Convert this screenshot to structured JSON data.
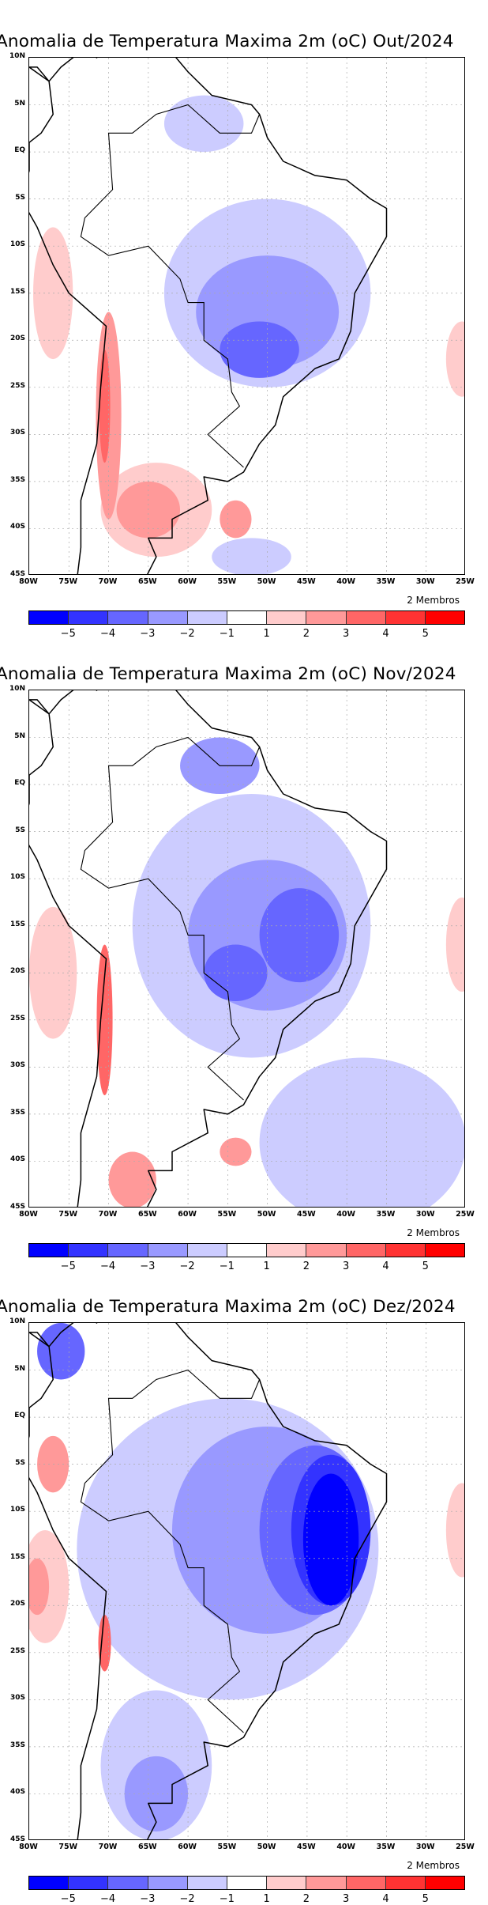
{
  "members_label": "2 Membros",
  "chart_data": {
    "type": "heatmap",
    "lon_ticks": [
      "80W",
      "75W",
      "70W",
      "65W",
      "60W",
      "55W",
      "50W",
      "45W",
      "40W",
      "35W",
      "30W",
      "25W"
    ],
    "lat_ticks": [
      "10N",
      "5N",
      "EQ",
      "5S",
      "10S",
      "15S",
      "20S",
      "25S",
      "30S",
      "35S",
      "40S",
      "45S"
    ],
    "lon_range": [
      -80,
      -25
    ],
    "lat_range": [
      -45,
      10
    ],
    "colorbar": {
      "labels": [
        "-5",
        "-4",
        "-3",
        "-2",
        "-1",
        "1",
        "2",
        "3",
        "4",
        "5"
      ],
      "levels": [
        -5,
        -4,
        -3,
        -2,
        -1,
        0,
        1,
        2,
        3,
        4,
        5
      ],
      "colors": [
        "#0000ff",
        "#3333ff",
        "#6666ff",
        "#9999ff",
        "#ccccff",
        "#ffffff",
        "#ffcccc",
        "#ff9999",
        "#ff6666",
        "#ff3333",
        "#ff0000"
      ]
    },
    "panels": [
      {
        "title": "Anomalia de Temperatura Maxima 2m (oC) Out/2024",
        "anomaly_regions": [
          {
            "lon": -50,
            "lat": -15,
            "rlon": 13,
            "rlat": 10,
            "level": -1
          },
          {
            "lon": -58,
            "lat": 3,
            "rlon": 5,
            "rlat": 3,
            "level": -1
          },
          {
            "lon": -50,
            "lat": -17,
            "rlon": 9,
            "rlat": 6,
            "level": -2
          },
          {
            "lon": -51,
            "lat": -21,
            "rlon": 5,
            "rlat": 3,
            "level": -3
          },
          {
            "lon": -52,
            "lat": -43,
            "rlon": 5,
            "rlat": 2,
            "level": -1
          },
          {
            "lon": -77,
            "lat": -15,
            "rlon": 2.5,
            "rlat": 7,
            "level": 1
          },
          {
            "lon": -64,
            "lat": -38,
            "rlon": 7,
            "rlat": 5,
            "level": 1
          },
          {
            "lon": -65,
            "lat": -38,
            "rlon": 4,
            "rlat": 3,
            "level": 2
          },
          {
            "lon": -70,
            "lat": -28,
            "rlon": 1.6,
            "rlat": 11,
            "level": 2
          },
          {
            "lon": -70.5,
            "lat": -27,
            "rlon": 0.7,
            "rlat": 6,
            "level": 3
          },
          {
            "lon": -54,
            "lat": -39,
            "rlon": 2,
            "rlat": 2,
            "level": 2
          },
          {
            "lon": -25.5,
            "lat": -22,
            "rlon": 2,
            "rlat": 4,
            "level": 1
          }
        ]
      },
      {
        "title": "Anomalia de Temperatura Maxima 2m (oC) Nov/2024",
        "anomaly_regions": [
          {
            "lon": -52,
            "lat": -15,
            "rlon": 15,
            "rlat": 14,
            "level": -1
          },
          {
            "lon": -38,
            "lat": -38,
            "rlon": 13,
            "rlat": 9,
            "level": -1
          },
          {
            "lon": -50,
            "lat": -16,
            "rlon": 10,
            "rlat": 8,
            "level": -2
          },
          {
            "lon": -46,
            "lat": -16,
            "rlon": 5,
            "rlat": 5,
            "level": -3
          },
          {
            "lon": -54,
            "lat": -20,
            "rlon": 4,
            "rlat": 3,
            "level": -3
          },
          {
            "lon": -56,
            "lat": 2,
            "rlon": 5,
            "rlat": 3,
            "level": -2
          },
          {
            "lon": -77,
            "lat": -20,
            "rlon": 3,
            "rlat": 7,
            "level": 1
          },
          {
            "lon": -70.5,
            "lat": -25,
            "rlon": 1,
            "rlat": 8,
            "level": 3
          },
          {
            "lon": -67,
            "lat": -42,
            "rlon": 3,
            "rlat": 3,
            "level": 2
          },
          {
            "lon": -54,
            "lat": -39,
            "rlon": 2,
            "rlat": 1.5,
            "level": 2
          },
          {
            "lon": -25.5,
            "lat": -17,
            "rlon": 2,
            "rlat": 5,
            "level": 1
          }
        ]
      },
      {
        "title": "Anomalia de Temperatura Maxima 2m (oC) Dez/2024",
        "anomaly_regions": [
          {
            "lon": -55,
            "lat": -14,
            "rlon": 19,
            "rlat": 16,
            "level": -1
          },
          {
            "lon": -64,
            "lat": -37,
            "rlon": 7,
            "rlat": 8,
            "level": -1
          },
          {
            "lon": -50,
            "lat": -12,
            "rlon": 12,
            "rlat": 11,
            "level": -2
          },
          {
            "lon": -64,
            "lat": -40,
            "rlon": 4,
            "rlat": 4,
            "level": -2
          },
          {
            "lon": -44,
            "lat": -12,
            "rlon": 7,
            "rlat": 9,
            "level": -3
          },
          {
            "lon": -76,
            "lat": 7,
            "rlon": 3,
            "rlat": 3,
            "level": -3
          },
          {
            "lon": -42,
            "lat": -12,
            "rlon": 5,
            "rlat": 8,
            "level": -4
          },
          {
            "lon": -42,
            "lat": -13,
            "rlon": 3.5,
            "rlat": 7,
            "level": -5
          },
          {
            "lon": -78,
            "lat": -18,
            "rlon": 3,
            "rlat": 6,
            "level": 1
          },
          {
            "lon": -79,
            "lat": -18,
            "rlon": 1.5,
            "rlat": 3,
            "level": 2
          },
          {
            "lon": -77,
            "lat": -5,
            "rlon": 2,
            "rlat": 3,
            "level": 2
          },
          {
            "lon": -70.5,
            "lat": -24,
            "rlon": 0.8,
            "rlat": 3,
            "level": 3
          },
          {
            "lon": -25.5,
            "lat": -12,
            "rlon": 2,
            "rlat": 5,
            "level": 1
          }
        ]
      }
    ]
  }
}
